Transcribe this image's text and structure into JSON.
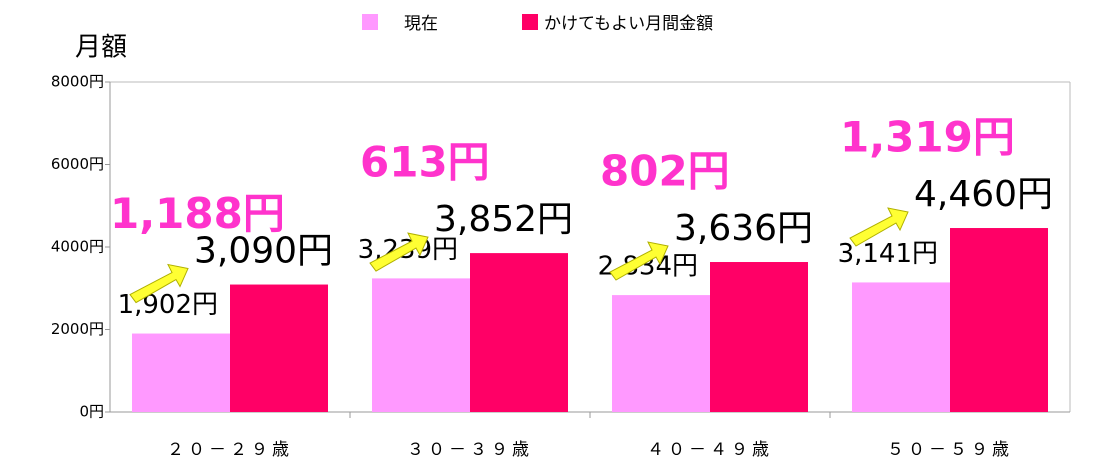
{
  "chart_data": {
    "type": "bar",
    "y_label": "月額",
    "categories": [
      "２０－２９歳",
      "３０－３９歳",
      "４０－４９歳",
      "５０－５９歳"
    ],
    "series": [
      {
        "name": "現在",
        "color": "#ff99ff",
        "values": [
          1902,
          3239,
          2834,
          3141
        ],
        "value_labels": [
          "1,902円",
          "3,239円",
          "2,834円",
          "3,141円"
        ]
      },
      {
        "name": "かけてもよい月間金額",
        "color": "#ff0066",
        "values": [
          3090,
          3852,
          3636,
          4460
        ],
        "value_labels": [
          "3,090円",
          "3,852円",
          "3,636円",
          "4,460円"
        ]
      }
    ],
    "annotations": [
      "1,188円",
      "613円",
      "802円",
      "1,319円"
    ],
    "annotation_color": "#ff33cc",
    "ylim": [
      0,
      8000
    ],
    "yticks": [
      {
        "value": 0,
        "label": "0円"
      },
      {
        "value": 2000,
        "label": "2000円"
      },
      {
        "value": 4000,
        "label": "4000円"
      },
      {
        "value": 6000,
        "label": "6000円"
      },
      {
        "value": 8000,
        "label": "8000円"
      }
    ],
    "grid": false,
    "legend": "top"
  }
}
